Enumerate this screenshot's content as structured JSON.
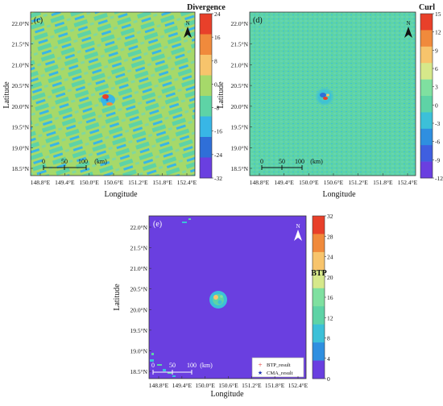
{
  "chart_data": [
    {
      "type": "heatmap",
      "panel_label": "(c)",
      "xlabel": "Longitude",
      "ylabel": "Latitude",
      "xticks": [
        "148.8°E",
        "149.4°E",
        "150.0°E",
        "150.6°E",
        "151.2°E",
        "151.8°E",
        "152.4°E"
      ],
      "yticks": [
        "22.0°N",
        "21.5°N",
        "21.0°N",
        "20.5°N",
        "20.0°N",
        "19.5°N",
        "19.0°N",
        "18.5°N"
      ],
      "colorbar": {
        "title": "Divergence",
        "ticks": [
          "24",
          "16",
          "8",
          "0",
          "-8",
          "-16",
          "-24",
          "-32"
        ],
        "colors": [
          "#e8402a",
          "#f08a3c",
          "#f7c46c",
          "#a6d96a",
          "#5ed3a6",
          "#38b6e6",
          "#2f6fd8",
          "#6a3fe0"
        ]
      },
      "scalebar": {
        "ticks": [
          "0",
          "50",
          "100"
        ],
        "unit": "(km)"
      },
      "north_label": "N"
    },
    {
      "type": "heatmap",
      "panel_label": "(d)",
      "xlabel": "Longitude",
      "ylabel": "Latitude",
      "xticks": [
        "148.8°E",
        "149.4°E",
        "150.0°E",
        "150.6°E",
        "151.2°E",
        "151.8°E",
        "152.4°E"
      ],
      "yticks": [
        "22.0°N",
        "21.5°N",
        "21.0°N",
        "20.5°N",
        "20.0°N",
        "19.5°N",
        "19.0°N",
        "18.5°N"
      ],
      "colorbar": {
        "title": "Curl",
        "ticks": [
          "15",
          "12",
          "9",
          "6",
          "3",
          "0",
          "-3",
          "-6",
          "-9",
          "-12"
        ],
        "colors": [
          "#e8402a",
          "#f08a3c",
          "#f7c46c",
          "#d6e88a",
          "#7fe0a0",
          "#5ed3a6",
          "#3cc0d8",
          "#2f8fe0",
          "#3f5fe0",
          "#6a3fe0"
        ]
      },
      "scalebar": {
        "ticks": [
          "0",
          "50",
          "100"
        ],
        "unit": "(km)"
      },
      "north_label": "N"
    },
    {
      "type": "heatmap",
      "panel_label": "(e)",
      "xlabel": "Longitude",
      "ylabel": "Latitude",
      "xticks": [
        "148.8°E",
        "149.4°E",
        "150.0°E",
        "150.6°E",
        "151.2°E",
        "151.8°E",
        "152.4°E"
      ],
      "yticks": [
        "22.0°N",
        "21.5°N",
        "21.0°N",
        "20.5°N",
        "20.0°N",
        "19.5°N",
        "19.0°N",
        "18.5°N"
      ],
      "colorbar": {
        "title": "BTP",
        "ticks": [
          "32",
          "28",
          "24",
          "20",
          "16",
          "12",
          "8",
          "4",
          "0"
        ],
        "colors": [
          "#e8402a",
          "#f08a3c",
          "#f7c46c",
          "#d6e88a",
          "#7fe0a0",
          "#5ed3a6",
          "#3cc0d8",
          "#2f8fe0",
          "#6a3fe0"
        ]
      },
      "scalebar": {
        "ticks": [
          "0",
          "50",
          "100"
        ],
        "unit": "(km)"
      },
      "north_label": "N",
      "legend": [
        {
          "marker": "+",
          "label": "BTP_result",
          "color": "#e53935"
        },
        {
          "marker": "★",
          "label": "CMA_result",
          "color": "#1a2fb0"
        }
      ]
    }
  ]
}
